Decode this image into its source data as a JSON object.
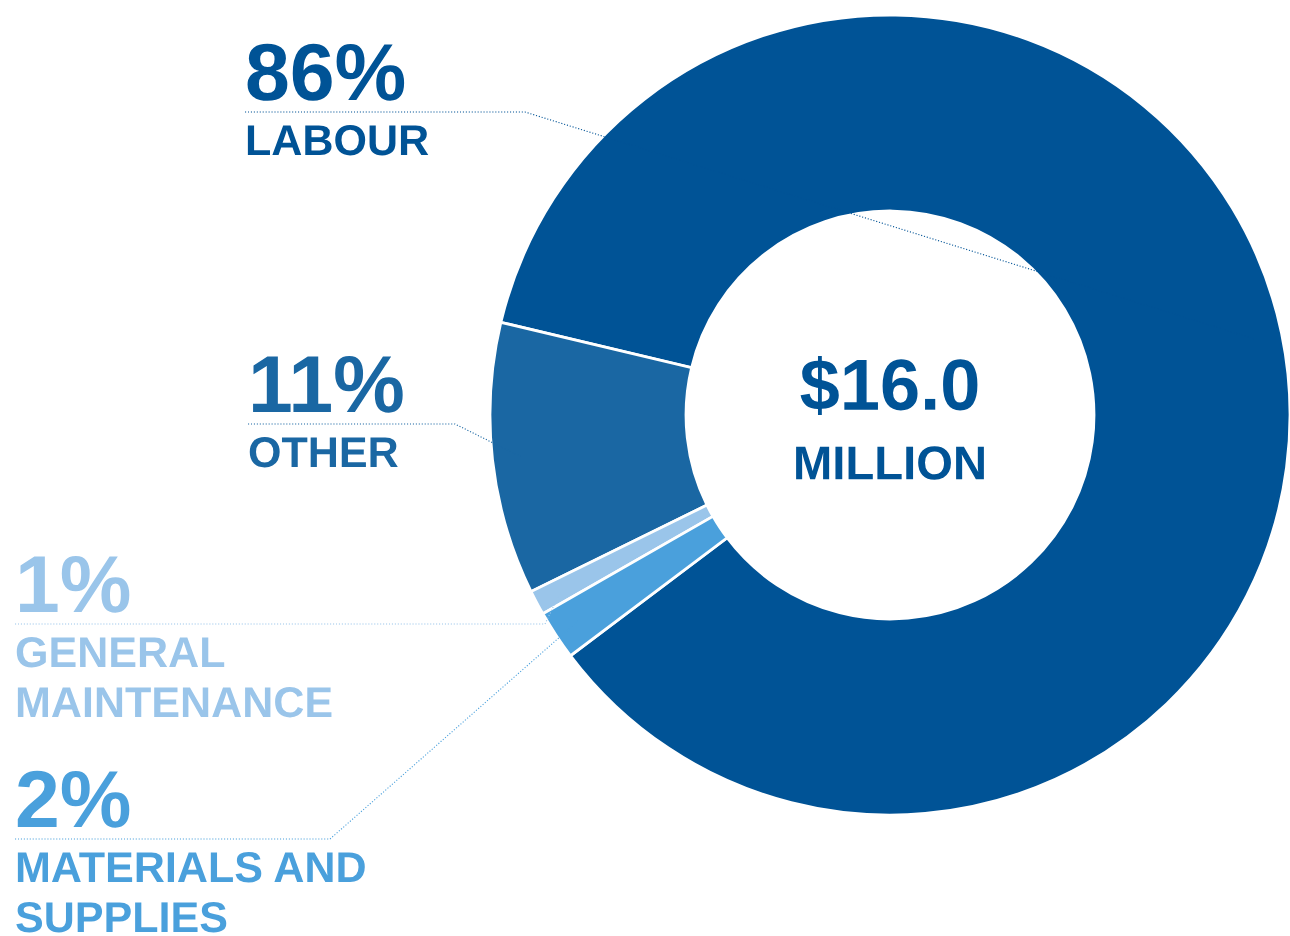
{
  "chart_data": {
    "type": "donut",
    "categories": [
      "LABOUR",
      "OTHER",
      "GENERAL MAINTENANCE",
      "MATERIALS AND SUPPLIES"
    ],
    "values": [
      86,
      11,
      1,
      2
    ],
    "value_labels": [
      "86%",
      "11%",
      "1%",
      "2%"
    ],
    "colors": [
      "#005396",
      "#1a67a3",
      "#9ac5ea",
      "#4aa0dc"
    ],
    "annotations": [
      "$16.0",
      "MILLION"
    ]
  }
}
